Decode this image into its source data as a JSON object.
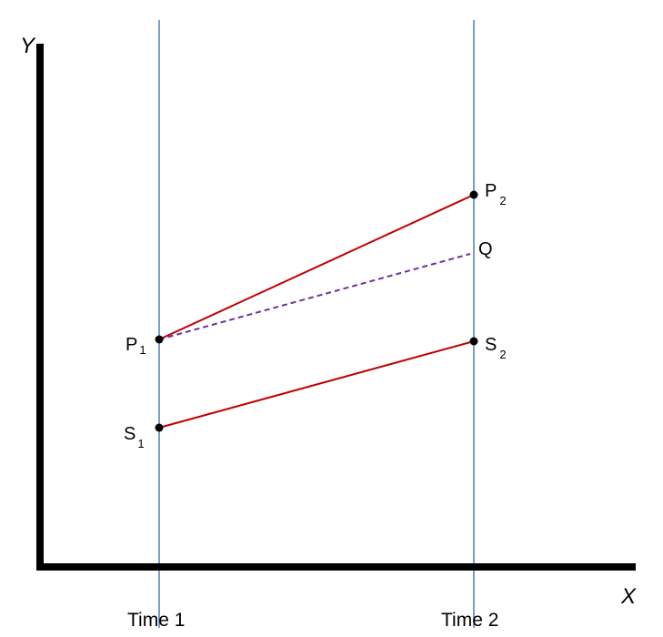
{
  "axes": {
    "y_label": "Y",
    "x_label": "X"
  },
  "time_lines": [
    {
      "label": "Time 1"
    },
    {
      "label": "Time 2"
    }
  ],
  "points": {
    "p1": {
      "letter": "P",
      "sub": "1"
    },
    "p2": {
      "letter": "P",
      "sub": "2"
    },
    "s1": {
      "letter": "S",
      "sub": "1"
    },
    "s2": {
      "letter": "S",
      "sub": "2"
    },
    "q": {
      "letter": "Q"
    }
  },
  "colors": {
    "axis": "#000000",
    "time_line": "#4a7ebb",
    "solid_segment": "#c00000",
    "dashed_segment": "#7030a0",
    "point": "#000000"
  }
}
